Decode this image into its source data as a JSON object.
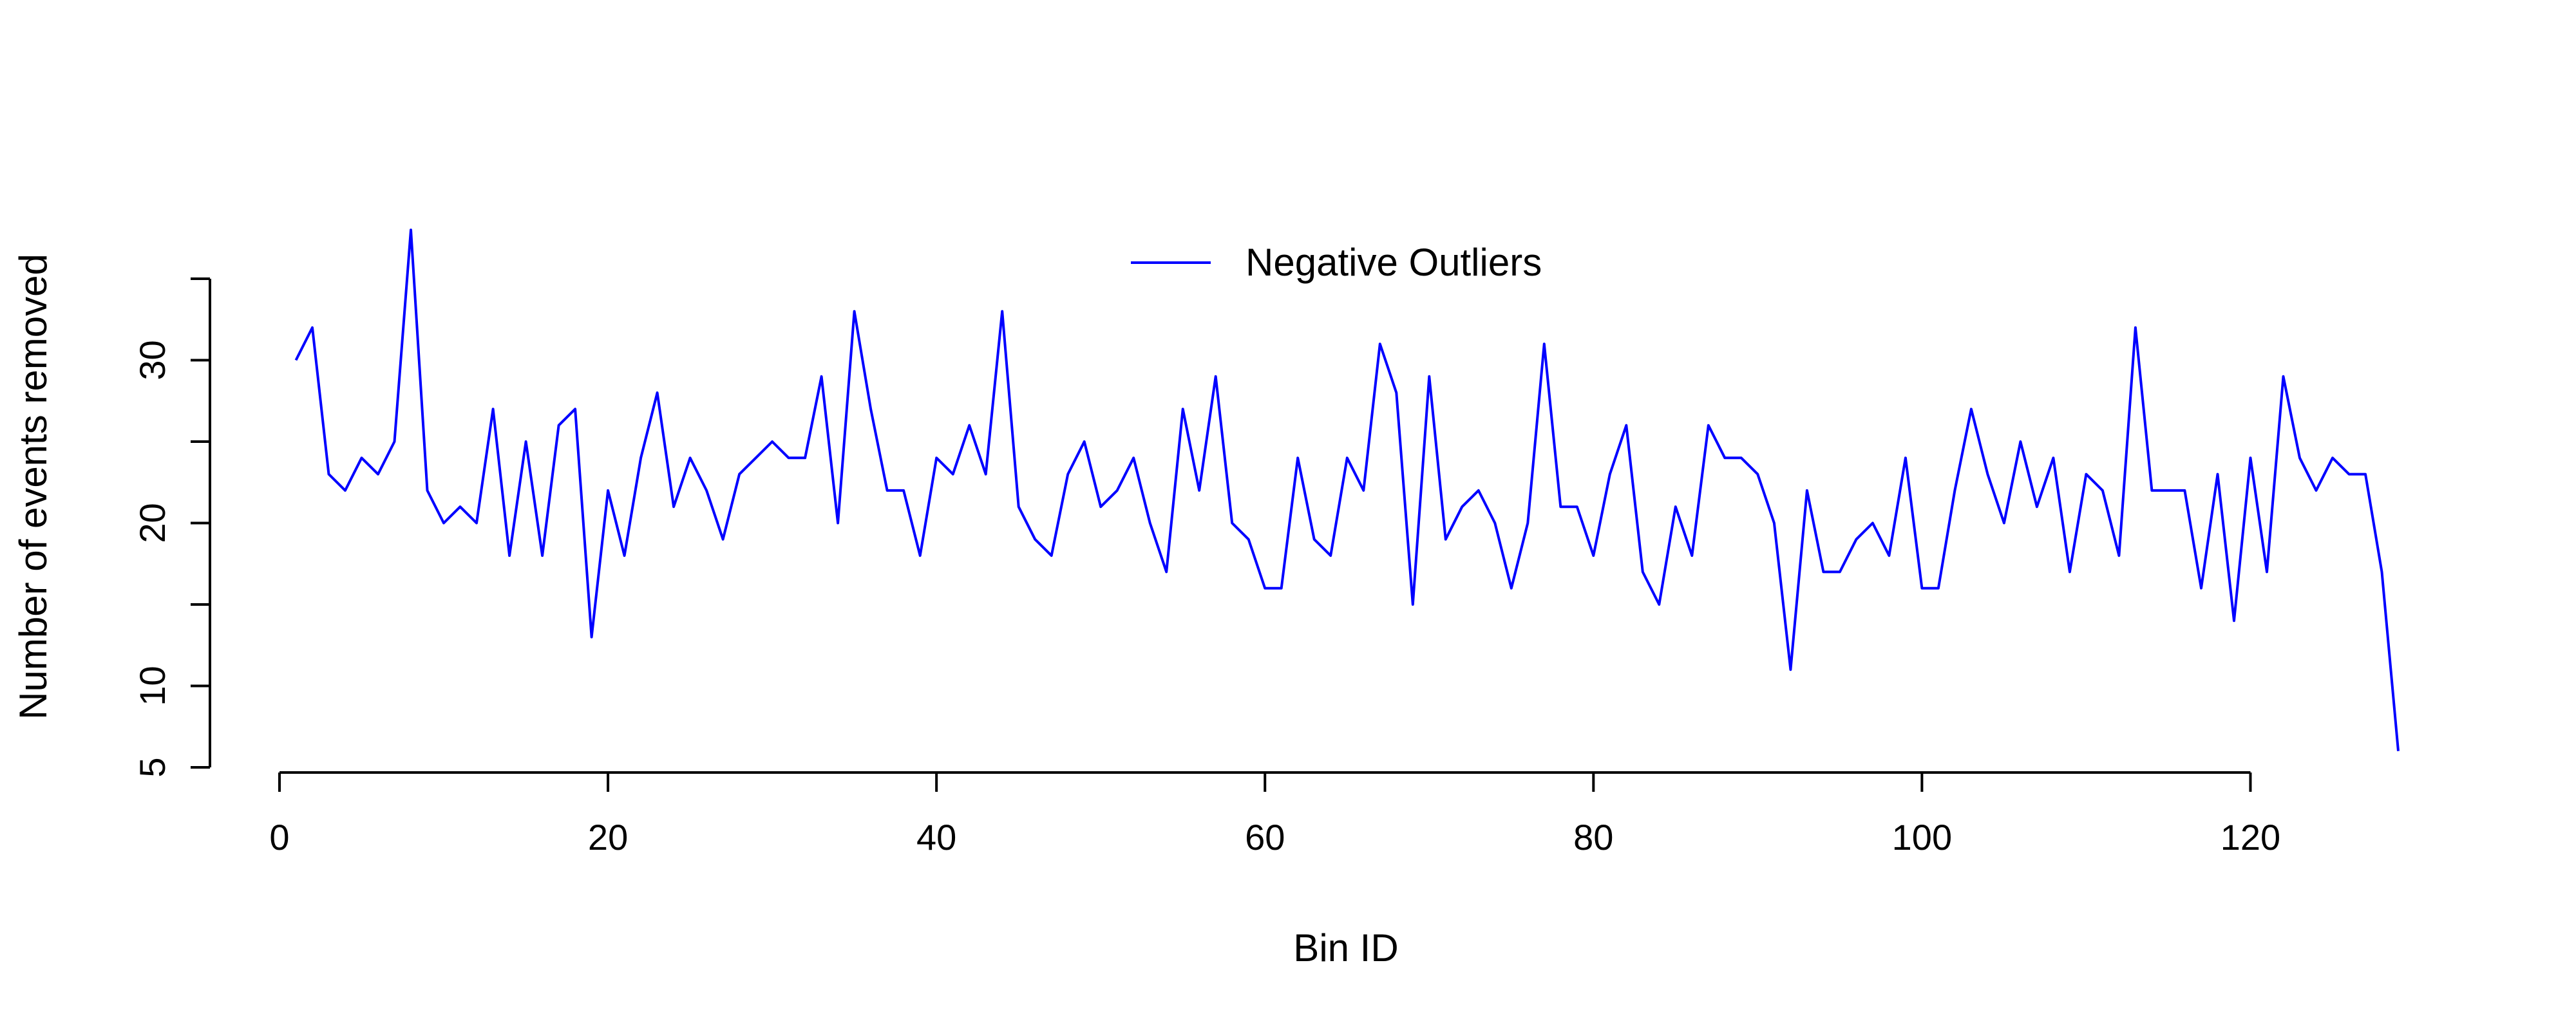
{
  "chart_data": {
    "type": "line",
    "xlabel": "Bin ID",
    "ylabel": "Number of events removed",
    "xlim": [
      0,
      129
    ],
    "ylim": [
      5,
      35
    ],
    "x_ticks": [
      0,
      20,
      40,
      60,
      80,
      100,
      120
    ],
    "y_ticks": [
      5,
      10,
      20,
      30
    ],
    "grid": false,
    "legend_position": "top-center",
    "series": [
      {
        "name": "Negative Outliers",
        "color": "#0000ff",
        "x": [
          1,
          2,
          3,
          4,
          5,
          6,
          7,
          8,
          9,
          10,
          11,
          12,
          13,
          14,
          15,
          16,
          17,
          18,
          19,
          20,
          21,
          22,
          23,
          24,
          25,
          26,
          27,
          28,
          29,
          30,
          31,
          32,
          33,
          34,
          35,
          36,
          37,
          38,
          39,
          40,
          41,
          42,
          43,
          44,
          45,
          46,
          47,
          48,
          49,
          50,
          51,
          52,
          53,
          54,
          55,
          56,
          57,
          58,
          59,
          60,
          61,
          62,
          63,
          64,
          65,
          66,
          67,
          68,
          69,
          70,
          71,
          72,
          73,
          74,
          75,
          76,
          77,
          78,
          79,
          80,
          81,
          82,
          83,
          84,
          85,
          86,
          87,
          88,
          89,
          90,
          91,
          92,
          93,
          94,
          95,
          96,
          97,
          98,
          99,
          100,
          101,
          102,
          103,
          104,
          105,
          106,
          107,
          108,
          109,
          110,
          111,
          112,
          113,
          114,
          115,
          116,
          117,
          118,
          119,
          120,
          121,
          122,
          123,
          124,
          125,
          126,
          127,
          128,
          129
        ],
        "values": [
          30,
          32,
          23,
          22,
          24,
          23,
          25,
          38,
          22,
          20,
          21,
          20,
          27,
          18,
          25,
          18,
          26,
          27,
          13,
          22,
          18,
          24,
          28,
          21,
          24,
          22,
          19,
          23,
          24,
          25,
          24,
          24,
          29,
          20,
          33,
          27,
          22,
          22,
          18,
          24,
          23,
          26,
          23,
          33,
          21,
          19,
          18,
          23,
          25,
          21,
          22,
          24,
          20,
          17,
          27,
          22,
          29,
          20,
          19,
          16,
          16,
          24,
          19,
          18,
          24,
          22,
          31,
          28,
          15,
          29,
          19,
          21,
          22,
          20,
          16,
          20,
          31,
          21,
          21,
          18,
          23,
          26,
          17,
          15,
          21,
          18,
          26,
          24,
          24,
          23,
          20,
          11,
          22,
          17,
          17,
          19,
          20,
          18,
          24,
          16,
          16,
          22,
          27,
          23,
          20,
          25,
          21,
          24,
          17,
          23,
          22,
          18,
          32,
          22,
          22,
          22,
          16,
          23,
          14,
          24,
          17,
          29,
          24,
          22,
          24,
          23,
          23,
          17,
          6
        ]
      }
    ]
  }
}
